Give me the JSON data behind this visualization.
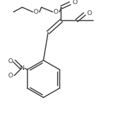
{
  "background": "#ffffff",
  "line_color": "#404040",
  "line_width": 1.1,
  "font_size": 6.8,
  "fig_width": 2.04,
  "fig_height": 1.81,
  "dpi": 100,
  "xlim": [
    -5,
    205
  ],
  "ylim": [
    -5,
    182
  ]
}
